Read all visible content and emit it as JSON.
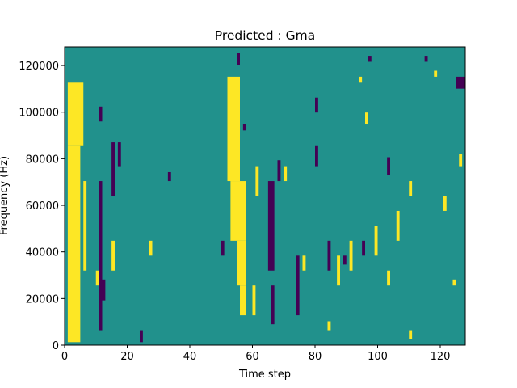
{
  "chart_data": {
    "type": "heatmap",
    "title": "Predicted : Gma",
    "xlabel": "Time step",
    "ylabel": "Frequency (Hz)",
    "xlim": [
      0,
      128
    ],
    "ylim": [
      0,
      128000
    ],
    "xticks": [
      0,
      20,
      40,
      60,
      80,
      100,
      120
    ],
    "xtick_labels": [
      "0",
      "20",
      "40",
      "60",
      "80",
      "100",
      "120"
    ],
    "yticks": [
      0,
      20000,
      40000,
      60000,
      80000,
      100000,
      120000
    ],
    "ytick_labels": [
      "0",
      "20000",
      "40000",
      "60000",
      "80000",
      "100000",
      "120000"
    ],
    "colormap": "viridis",
    "colors": {
      "low": "#440154",
      "mid": "#21918c",
      "high": "#fde725",
      "background": "#21918c"
    },
    "levels": [
      -1,
      0,
      1
    ],
    "grid": false,
    "cells_low": [
      [
        11,
        12,
        0.05,
        0.55
      ],
      [
        11,
        12,
        0.75,
        0.8
      ],
      [
        12,
        13,
        0.15,
        0.22
      ],
      [
        15,
        16,
        0.5,
        0.68
      ],
      [
        17,
        18,
        0.6,
        0.68
      ],
      [
        33,
        34,
        0.55,
        0.58
      ],
      [
        50,
        51,
        0.3,
        0.35
      ],
      [
        57,
        58,
        0.72,
        0.74
      ],
      [
        65,
        67,
        0.25,
        0.55
      ],
      [
        66,
        67,
        0.07,
        0.2
      ],
      [
        68,
        69,
        0.55,
        0.62
      ],
      [
        74,
        75,
        0.1,
        0.3
      ],
      [
        80,
        81,
        0.6,
        0.67
      ],
      [
        80,
        81,
        0.78,
        0.83
      ],
      [
        84,
        85,
        0.25,
        0.35
      ],
      [
        89,
        90,
        0.27,
        0.3
      ],
      [
        95,
        96,
        0.3,
        0.35
      ],
      [
        103,
        104,
        0.57,
        0.63
      ],
      [
        125,
        128,
        0.86,
        0.9
      ],
      [
        24,
        25,
        0.01,
        0.05
      ],
      [
        97,
        98,
        0.95,
        0.97
      ],
      [
        55,
        56,
        0.94,
        0.98
      ],
      [
        115,
        116,
        0.95,
        0.97
      ]
    ],
    "cells_high": [
      [
        1,
        5,
        0.01,
        0.67
      ],
      [
        1,
        6,
        0.67,
        0.88
      ],
      [
        6,
        7,
        0.25,
        0.55
      ],
      [
        10,
        11,
        0.2,
        0.25
      ],
      [
        15,
        16,
        0.25,
        0.35
      ],
      [
        27,
        28,
        0.3,
        0.35
      ],
      [
        52,
        56,
        0.55,
        0.9
      ],
      [
        53,
        58,
        0.35,
        0.55
      ],
      [
        55,
        58,
        0.2,
        0.35
      ],
      [
        56,
        58,
        0.1,
        0.2
      ],
      [
        60,
        61,
        0.1,
        0.2
      ],
      [
        61,
        62,
        0.5,
        0.6
      ],
      [
        70,
        71,
        0.55,
        0.6
      ],
      [
        76,
        77,
        0.25,
        0.3
      ],
      [
        87,
        88,
        0.2,
        0.3
      ],
      [
        91,
        92,
        0.25,
        0.35
      ],
      [
        99,
        100,
        0.3,
        0.4
      ],
      [
        106,
        107,
        0.35,
        0.45
      ],
      [
        110,
        111,
        0.5,
        0.55
      ],
      [
        118,
        119,
        0.9,
        0.92
      ],
      [
        121,
        122,
        0.45,
        0.5
      ],
      [
        124,
        125,
        0.2,
        0.22
      ],
      [
        94,
        95,
        0.88,
        0.9
      ],
      [
        96,
        97,
        0.74,
        0.78
      ],
      [
        103,
        104,
        0.2,
        0.25
      ],
      [
        110,
        111,
        0.02,
        0.05
      ],
      [
        126,
        127,
        0.6,
        0.64
      ],
      [
        84,
        85,
        0.05,
        0.08
      ]
    ]
  }
}
